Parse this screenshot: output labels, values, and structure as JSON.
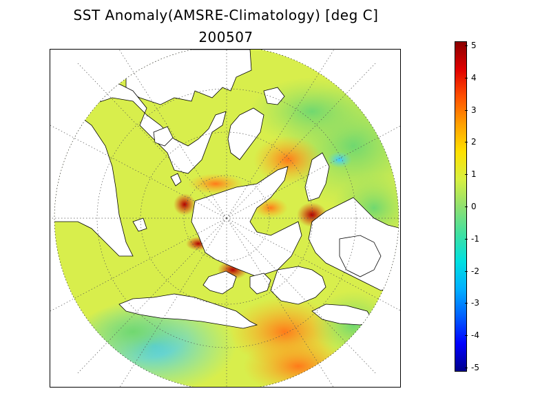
{
  "title": {
    "line1": "SST Anomaly(AMSRE-Climatology) [deg C]",
    "line2": "200507"
  },
  "colorbar": {
    "min": -5,
    "max": 5,
    "tick_labels": [
      "5",
      "4",
      "3",
      "2",
      "1",
      "0",
      "-1",
      "-2",
      "-3",
      "-4",
      "-5"
    ],
    "colors": [
      "#00008b",
      "#0000ff",
      "#0060ff",
      "#00b0ff",
      "#00e0e0",
      "#40e0a0",
      "#90e070",
      "#d8f040",
      "#ffe000",
      "#ffa000",
      "#ff5000",
      "#e00000",
      "#8b0000"
    ]
  },
  "map": {
    "projection": "north polar stereographic",
    "grid": "dotted",
    "land_color": "#ffffff",
    "coast_color": "#000000"
  }
}
